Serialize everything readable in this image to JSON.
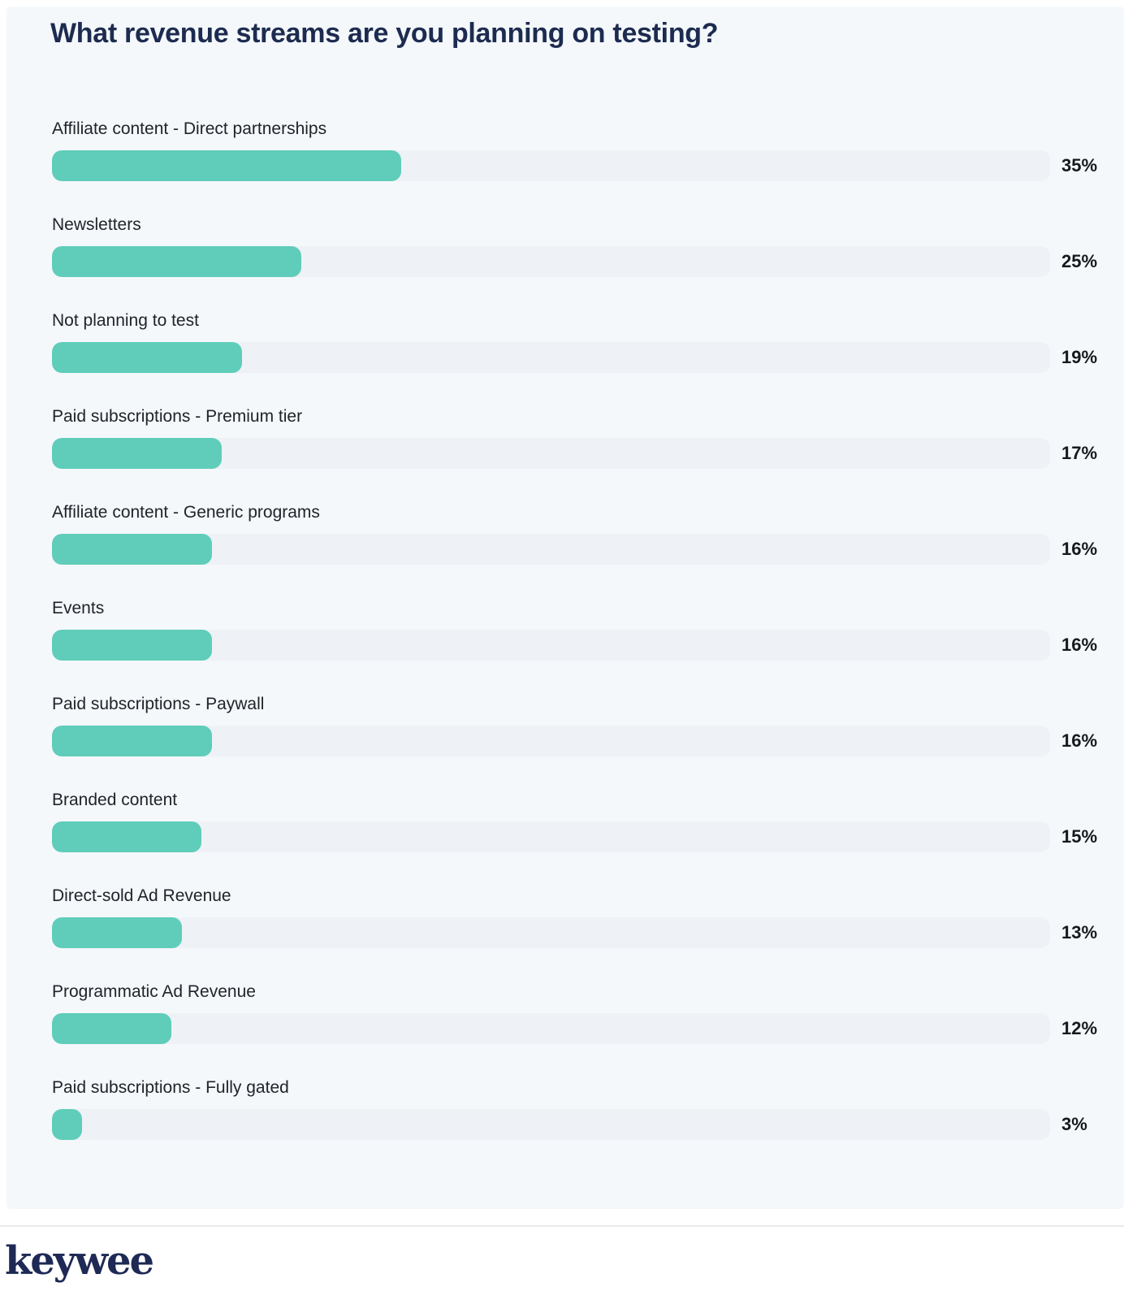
{
  "header": {
    "title": "What revenue streams are you planning on testing?"
  },
  "chart_data": {
    "type": "bar",
    "orientation": "horizontal",
    "title": "What revenue streams are you planning on testing?",
    "categories": [
      "Affiliate content - Direct partnerships",
      "Newsletters",
      "Not planning to test",
      "Paid subscriptions - Premium tier",
      "Affiliate content - Generic programs",
      "Events",
      "Paid subscriptions - Paywall",
      "Branded content",
      "Direct-sold Ad Revenue",
      "Programmatic Ad Revenue",
      "Paid subscriptions - Fully gated"
    ],
    "values": [
      35,
      25,
      19,
      17,
      16,
      16,
      16,
      15,
      13,
      12,
      3
    ],
    "value_labels": [
      "35%",
      "25%",
      "19%",
      "17%",
      "16%",
      "16%",
      "16%",
      "15%",
      "13%",
      "12%",
      "3%"
    ],
    "value_suffix": "%",
    "xlim": [
      0,
      100
    ],
    "grid": false,
    "legend": "none",
    "bar_color": "#5FCDB9",
    "track_color": "#EEF1F5",
    "card_background": "#F4F8FB",
    "title_color": "#1D2B50",
    "label_color": "#20242B",
    "value_color": "#17191C"
  },
  "footer": {
    "logo_text": "keywee",
    "logo_color": "#1E2A55",
    "divider_color": "#E9EAEC"
  }
}
